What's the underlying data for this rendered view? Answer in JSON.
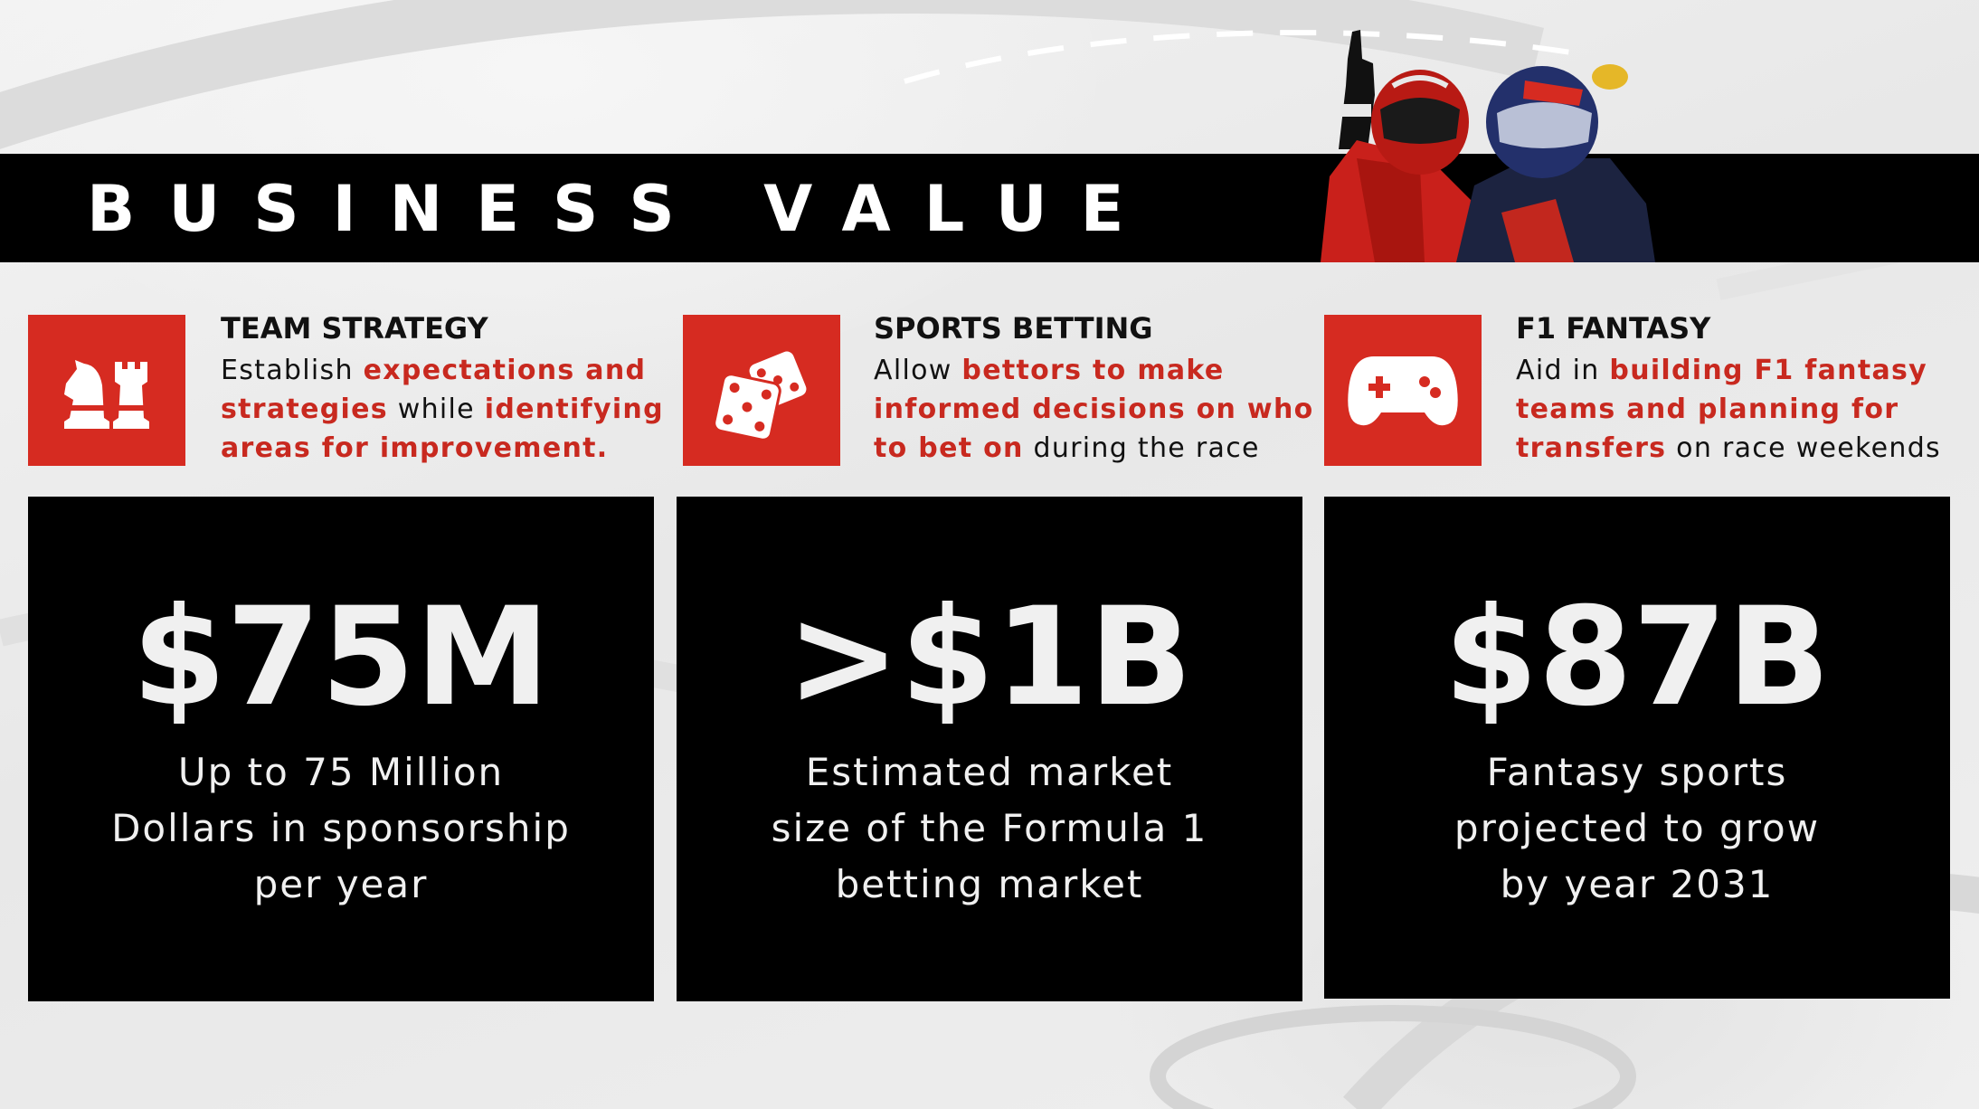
{
  "title": "BUSINESS VALUE",
  "colors": {
    "accent": "#d62b21",
    "highlight": "#c8291f",
    "dark": "#000000",
    "text": "#111111",
    "stat_text": "#f0f0f0"
  },
  "features": [
    {
      "icon": "chess-pieces-icon",
      "heading": "TEAM STRATEGY",
      "lines": [
        [
          {
            "t": "Establish "
          },
          {
            "t": "expectations and",
            "hl": true
          }
        ],
        [
          {
            "t": "strategies",
            "hl": true
          },
          {
            "t": " while "
          },
          {
            "t": "identifying",
            "hl": true
          }
        ],
        [
          {
            "t": "areas for improvement.",
            "hl": true
          }
        ]
      ]
    },
    {
      "icon": "dice-icon",
      "heading": "SPORTS BETTING",
      "lines": [
        [
          {
            "t": "Allow "
          },
          {
            "t": "bettors to make",
            "hl": true
          }
        ],
        [
          {
            "t": "informed decisions on who",
            "hl": true
          }
        ],
        [
          {
            "t": "to bet on",
            "hl": true
          },
          {
            "t": " during the race"
          }
        ]
      ]
    },
    {
      "icon": "gamepad-icon",
      "heading": "F1 FANTASY",
      "lines": [
        [
          {
            "t": "Aid in "
          },
          {
            "t": "building F1 fantasy",
            "hl": true
          }
        ],
        [
          {
            "t": "teams and planning for",
            "hl": true
          }
        ],
        [
          {
            "t": "transfers",
            "hl": true
          },
          {
            "t": " on race weekends"
          }
        ]
      ]
    }
  ],
  "stats": [
    {
      "value": "$75M",
      "lines": [
        "Up to 75 Million",
        "Dollars in sponsorship",
        "per year"
      ]
    },
    {
      "value": ">$1B",
      "lines": [
        "Estimated market",
        "size of the Formula 1",
        "betting market"
      ]
    },
    {
      "value": "$87B",
      "lines": [
        "Fantasy sports",
        "projected to grow",
        "by year 2031"
      ]
    }
  ]
}
